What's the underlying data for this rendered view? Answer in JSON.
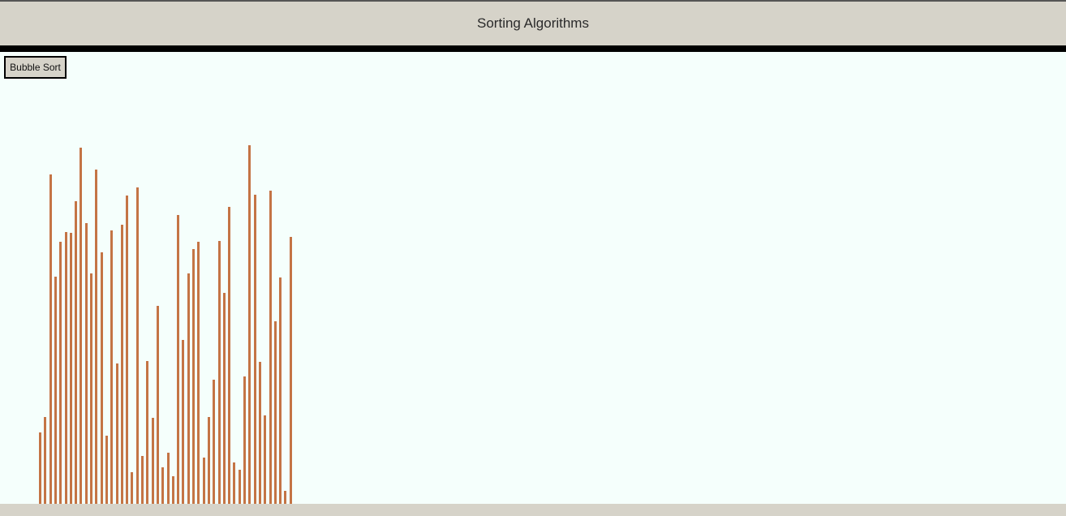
{
  "header": {
    "title": "Sorting Algorithms"
  },
  "controls": {
    "bubble_sort_label": "Bubble Sort"
  },
  "colors": {
    "bar": "#c47445",
    "header_bg": "#d6d3c9",
    "canvas_bg": "#f5fffc"
  },
  "chart_data": {
    "type": "bar",
    "values": [
      88,
      107,
      406,
      280,
      323,
      335,
      334,
      373,
      439,
      346,
      284,
      412,
      310,
      84,
      337,
      173,
      344,
      380,
      39,
      390,
      59,
      176,
      106,
      244,
      45,
      63,
      34,
      356,
      202,
      284,
      314,
      323,
      57,
      107,
      153,
      324,
      260,
      366,
      51,
      42,
      157,
      442,
      381,
      175,
      109,
      386,
      225,
      279,
      16,
      329
    ],
    "ylim": [
      0,
      557
    ]
  }
}
